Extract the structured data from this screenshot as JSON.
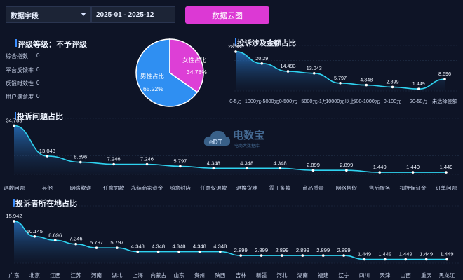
{
  "filters": {
    "field_select": "数据字段",
    "date_range": "2025-01 - 2025-12",
    "cloud_button": "数据云图"
  },
  "rating": {
    "title": "评级等级：不予评级",
    "metrics": [
      {
        "label": "综合指数",
        "value": "0"
      },
      {
        "label": "平台反馈率",
        "value": "0"
      },
      {
        "label": "反馈时效性",
        "value": "0"
      },
      {
        "label": "用户满意度",
        "value": "0"
      }
    ]
  },
  "gender_pie": {
    "female_label": "女性占比",
    "female_value": "34.78%",
    "male_label": "男性占比",
    "male_value": "65.22%",
    "female_pct": 34.78,
    "male_pct": 65.22,
    "female_color": "#dd3fd6",
    "male_color": "#2f8ff2"
  },
  "watermark": {
    "logo": "eDT",
    "name": "电数宝",
    "sub": "电商大数据库"
  },
  "chart_data": [
    {
      "type": "area",
      "title": "投诉涉及金额占比",
      "unit": "%",
      "categories": [
        "0-5万",
        "1000元-5000元",
        "0-500元",
        "5000元-1万",
        "10000元以上",
        "500-1000元",
        "0-100元",
        "20-50万",
        "未选择金额"
      ],
      "values": [
        28.986,
        20.29,
        14.493,
        13.043,
        5.797,
        4.348,
        2.899,
        1.449,
        8.696
      ],
      "ylim": [
        0,
        30
      ]
    },
    {
      "type": "area",
      "title": "投诉问题占比",
      "categories": [
        "退款问题",
        "其他",
        "网络欺诈",
        "任意罚款",
        "冻结商家资金",
        "随意封店",
        "任意仅退款",
        "退换货难",
        "霸王条款",
        "商品质量",
        "网络售假",
        "售后服务",
        "扣押保证金",
        "订单问题"
      ],
      "values": [
        34.783,
        13.043,
        8.696,
        7.246,
        7.246,
        5.797,
        4.348,
        4.348,
        4.348,
        2.899,
        2.899,
        1.449,
        1.449,
        1.449
      ],
      "ylim": [
        0,
        36
      ]
    },
    {
      "type": "area",
      "title": "投诉者所在地占比",
      "categories": [
        "广东",
        "北京",
        "江西",
        "江苏",
        "河南",
        "湖北",
        "上海",
        "内蒙古",
        "山东",
        "贵州",
        "陕西",
        "吉林",
        "新疆",
        "河北",
        "湖南",
        "福建",
        "辽宁",
        "四川",
        "天津",
        "山西",
        "重庆",
        "黑龙江"
      ],
      "values": [
        15.942,
        10.145,
        8.696,
        7.246,
        5.797,
        5.797,
        4.348,
        4.348,
        4.348,
        4.348,
        4.348,
        2.899,
        2.899,
        2.899,
        2.899,
        2.899,
        2.899,
        1.449,
        1.449,
        1.449,
        1.449,
        1.449
      ],
      "ylim": [
        0,
        17
      ]
    }
  ]
}
